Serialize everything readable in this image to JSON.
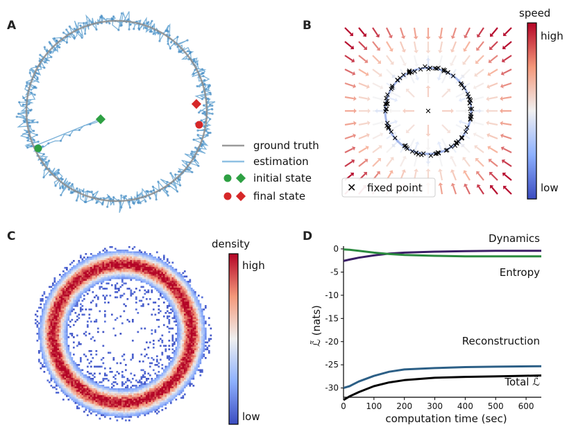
{
  "panels": {
    "a": "A",
    "b": "B",
    "c": "C",
    "d": "D"
  },
  "colors": {
    "ground_truth": "#8c8c8c",
    "estimation": "#5b9fd0",
    "initial": "#2ea043",
    "final": "#d62728",
    "dynamics": "#3b1f66",
    "entropy": "#2a8a3e",
    "reconstruction": "#2c5f86",
    "total": "#000000"
  },
  "panel_a": {
    "legend": {
      "ground_truth": "ground truth",
      "estimation": "estimation",
      "initial": "initial state",
      "final": "final state"
    }
  },
  "panel_b": {
    "colorbar_title": "speed",
    "colorbar_high": "high",
    "colorbar_low": "low",
    "legend": "fixed point"
  },
  "panel_c": {
    "colorbar_title": "density",
    "colorbar_high": "high",
    "colorbar_low": "low"
  },
  "chart_data": [
    {
      "panel": "A",
      "type": "scatter",
      "description_ring": "unit circle",
      "series": [
        {
          "name": "ground truth"
        },
        {
          "name": "estimation"
        }
      ],
      "markers": [
        {
          "name": "initial state",
          "shapes": [
            "circle",
            "diamond"
          ]
        },
        {
          "name": "final state",
          "shapes": [
            "circle",
            "diamond"
          ]
        }
      ]
    },
    {
      "panel": "B",
      "type": "scatter",
      "legend": "fixed point",
      "colorbar": {
        "label": "speed",
        "range": [
          "low",
          "high"
        ]
      }
    },
    {
      "panel": "C",
      "type": "heatmap",
      "colorbar": {
        "label": "density",
        "range": [
          "low",
          "high"
        ]
      }
    },
    {
      "panel": "D",
      "type": "line",
      "xlabel": "computation  time (sec)",
      "ylabel": "ℒ̃ (nats)",
      "xlim": [
        0,
        650
      ],
      "ylim": [
        -32,
        0
      ],
      "xticks": [
        0,
        100,
        200,
        300,
        400,
        500,
        600
      ],
      "yticks": [
        0,
        -5,
        -10,
        -15,
        -20,
        -25,
        -30
      ],
      "series": [
        {
          "name": "Dynamics",
          "x": [
            0,
            20,
            50,
            100,
            150,
            200,
            300,
            400,
            500,
            650
          ],
          "y": [
            -2.6,
            -2.3,
            -1.9,
            -1.4,
            -1.0,
            -0.8,
            -0.6,
            -0.5,
            -0.4,
            -0.4
          ]
        },
        {
          "name": "Entropy",
          "x": [
            0,
            20,
            50,
            100,
            150,
            200,
            300,
            400,
            500,
            650
          ],
          "y": [
            -0.1,
            -0.2,
            -0.4,
            -0.8,
            -1.1,
            -1.3,
            -1.5,
            -1.6,
            -1.6,
            -1.6
          ]
        },
        {
          "name": "Reconstruction",
          "x": [
            0,
            20,
            50,
            100,
            150,
            200,
            300,
            400,
            500,
            650
          ],
          "y": [
            -30.0,
            -29.6,
            -28.6,
            -27.4,
            -26.5,
            -26.0,
            -25.7,
            -25.5,
            -25.4,
            -25.3
          ]
        },
        {
          "name": "Total ℒ̃",
          "x": [
            0,
            20,
            50,
            100,
            150,
            200,
            300,
            400,
            500,
            650
          ],
          "y": [
            -32.6,
            -31.8,
            -30.9,
            -29.6,
            -28.8,
            -28.3,
            -27.8,
            -27.6,
            -27.5,
            -27.3
          ]
        }
      ]
    }
  ]
}
